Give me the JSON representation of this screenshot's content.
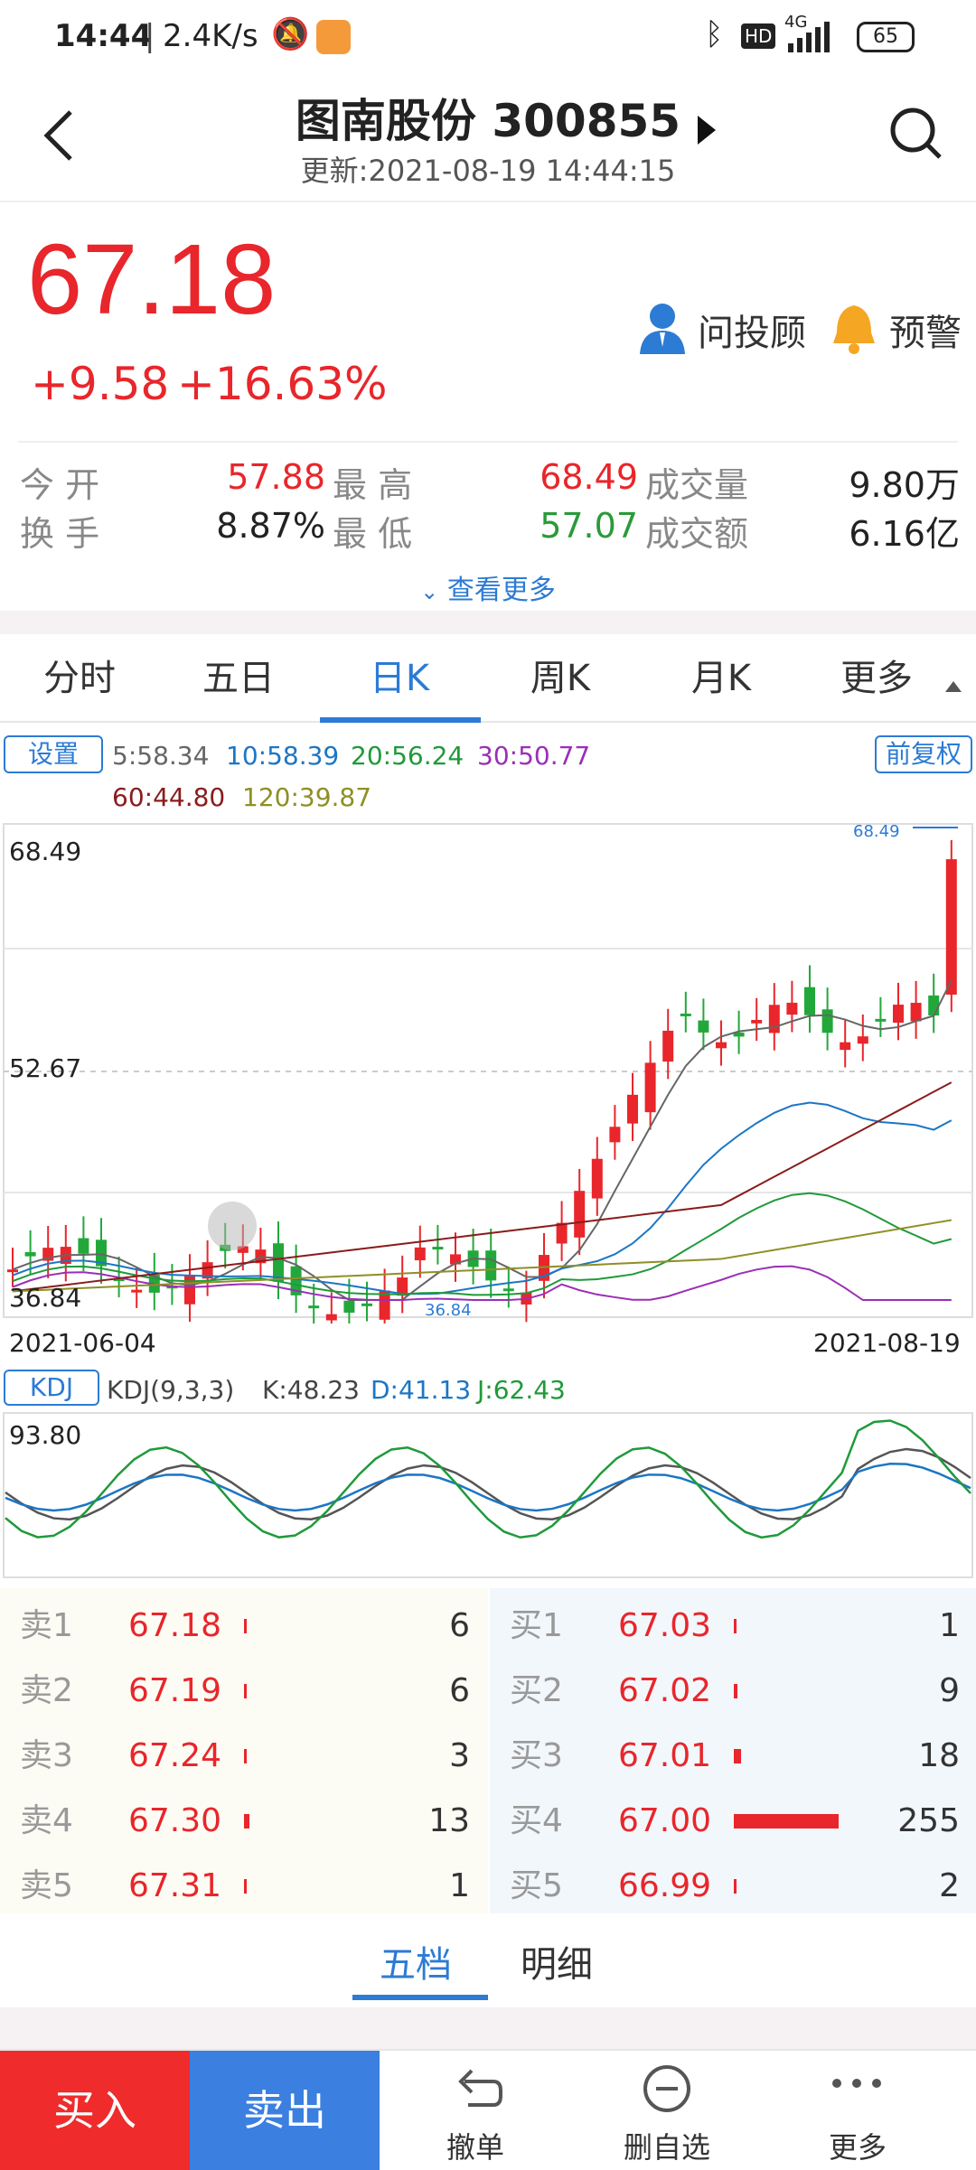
{
  "status_bar": {
    "time": "14:44",
    "speed": "2.4K/s",
    "network": "4G",
    "battery": "65"
  },
  "header": {
    "title": "图南股份 300855",
    "updated": "更新:2021-08-19 14:44:15"
  },
  "quote": {
    "price": "67.18",
    "change": "+9.58",
    "change_pct": "+16.63%",
    "advisor_label": "问投顾",
    "alert_label": "预警",
    "stats": [
      {
        "label": "今 开",
        "value": "57.88",
        "color": "#e8262b"
      },
      {
        "label": "最 高",
        "value": "68.49",
        "color": "#e8262b"
      },
      {
        "label": "成交量",
        "value": "9.80万",
        "color": "#222"
      },
      {
        "label": "换 手",
        "value": "8.87%",
        "color": "#222"
      },
      {
        "label": "最 低",
        "value": "57.07",
        "color": "#2a9a3a"
      },
      {
        "label": "成交额",
        "value": "6.16亿",
        "color": "#222"
      }
    ],
    "more_label": "查看更多"
  },
  "tabs": [
    "分时",
    "五日",
    "日K",
    "周K",
    "月K",
    "更多"
  ],
  "active_tab": 2,
  "ma": {
    "settings_label": "设置",
    "restore_label": "前复权",
    "items": [
      {
        "text": "5:58.34",
        "color": "#666666"
      },
      {
        "text": "10:58.39",
        "color": "#1c76c4"
      },
      {
        "text": "20:56.24",
        "color": "#1f9a3a"
      },
      {
        "text": "30:50.77",
        "color": "#9a2fb6"
      },
      {
        "text": "60:44.80",
        "color": "#8a1c1c"
      },
      {
        "text": "120:39.87",
        "color": "#8f8f25"
      }
    ]
  },
  "kchart": {
    "y_high": "68.49",
    "y_mid": "52.67",
    "y_low": "36.84",
    "max_label": "68.49",
    "min_label": "36.84",
    "date_start": "2021-06-04",
    "date_end": "2021-08-19"
  },
  "kdj": {
    "button_label": "KDJ",
    "params": "KDJ(9,3,3)",
    "k": "K:48.23",
    "d": "D:41.13",
    "j": "J:62.43",
    "top": "93.80"
  },
  "order_book": {
    "sell": [
      {
        "label": "卖1",
        "price": "67.18",
        "vol": "6"
      },
      {
        "label": "卖2",
        "price": "67.19",
        "vol": "6"
      },
      {
        "label": "卖3",
        "price": "67.24",
        "vol": "3"
      },
      {
        "label": "卖4",
        "price": "67.30",
        "vol": "13"
      },
      {
        "label": "卖5",
        "price": "67.31",
        "vol": "1"
      }
    ],
    "buy": [
      {
        "label": "买1",
        "price": "67.03",
        "vol": "1"
      },
      {
        "label": "买2",
        "price": "67.02",
        "vol": "9"
      },
      {
        "label": "买3",
        "price": "67.01",
        "vol": "18"
      },
      {
        "label": "买4",
        "price": "67.00",
        "vol": "255"
      },
      {
        "label": "买5",
        "price": "66.99",
        "vol": "2"
      }
    ]
  },
  "sub_tabs": [
    "五档",
    "明细"
  ],
  "bottom_bar": {
    "buy": "买入",
    "sell": "卖出",
    "cancel": "撤单",
    "remove_watch": "删自选",
    "more": "更多"
  },
  "colors": {
    "up": "#e8262b",
    "down": "#2a9a3a",
    "accent": "#2c7bd4"
  }
}
